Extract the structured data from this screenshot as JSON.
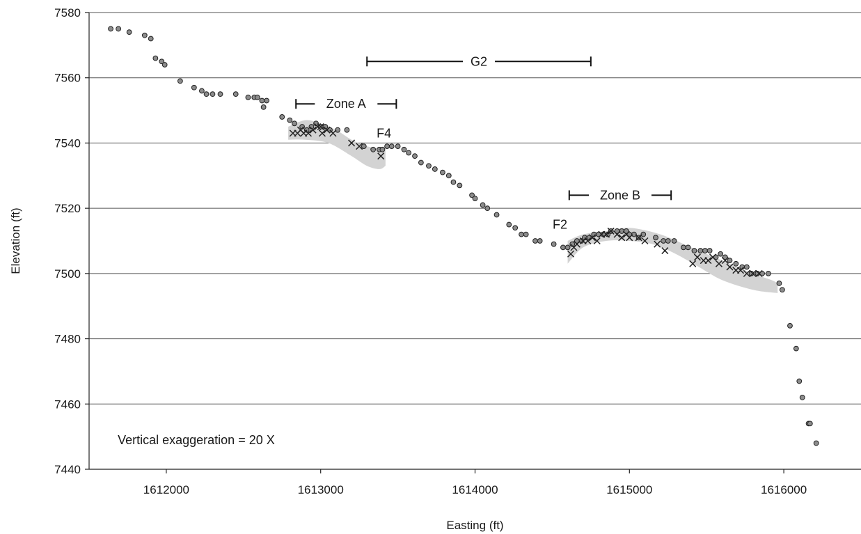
{
  "chart_data": {
    "type": "scatter",
    "title": "",
    "xlabel": "Easting (ft)",
    "ylabel": "Elevation (ft)",
    "xlim": [
      1611500,
      1616500
    ],
    "ylim": [
      7440,
      7580
    ],
    "x_ticks": [
      1612000,
      1613000,
      1614000,
      1615000,
      1616000
    ],
    "x_tick_labels": [
      "1612000",
      "1613000",
      "1614000",
      "1615000",
      "1616000"
    ],
    "y_ticks": [
      7440,
      7460,
      7480,
      7500,
      7520,
      7540,
      7560,
      7580
    ],
    "y_tick_labels": [
      "7440",
      "7460",
      "7480",
      "7500",
      "7520",
      "7540",
      "7560",
      "7580"
    ],
    "grid": "horizontal",
    "colors": {
      "points": "#8c8c8c",
      "point_edge": "#222222",
      "band": "#d3d3d3",
      "cross": "#222222"
    },
    "series": [
      {
        "marker": "circle",
        "points": [
          [
            1611640,
            7575
          ],
          [
            1611690,
            7575
          ],
          [
            1611760,
            7574
          ],
          [
            1611860,
            7573
          ],
          [
            1611900,
            7572
          ],
          [
            1611930,
            7566
          ],
          [
            1611970,
            7565
          ],
          [
            1611990,
            7564
          ],
          [
            1612090,
            7559
          ],
          [
            1612180,
            7557
          ],
          [
            1612230,
            7556
          ],
          [
            1612260,
            7555
          ],
          [
            1612300,
            7555
          ],
          [
            1612350,
            7555
          ],
          [
            1612450,
            7555
          ],
          [
            1612530,
            7554
          ],
          [
            1612570,
            7554
          ],
          [
            1612590,
            7554
          ],
          [
            1612620,
            7553
          ],
          [
            1612650,
            7553
          ],
          [
            1612630,
            7551
          ],
          [
            1612750,
            7548
          ],
          [
            1612800,
            7547
          ],
          [
            1612830,
            7546
          ],
          [
            1612880,
            7545
          ],
          [
            1612910,
            7544
          ],
          [
            1612940,
            7545
          ],
          [
            1612970,
            7546
          ],
          [
            1613000,
            7545
          ],
          [
            1613030,
            7545
          ],
          [
            1613060,
            7544
          ],
          [
            1613110,
            7544
          ],
          [
            1613170,
            7544
          ],
          [
            1613280,
            7539
          ],
          [
            1613340,
            7538
          ],
          [
            1613380,
            7538
          ],
          [
            1613400,
            7538
          ],
          [
            1613430,
            7539
          ],
          [
            1613460,
            7539
          ],
          [
            1613500,
            7539
          ],
          [
            1613540,
            7538
          ],
          [
            1613570,
            7537
          ],
          [
            1613610,
            7536
          ],
          [
            1613650,
            7534
          ],
          [
            1613700,
            7533
          ],
          [
            1613740,
            7532
          ],
          [
            1613790,
            7531
          ],
          [
            1613830,
            7530
          ],
          [
            1613860,
            7528
          ],
          [
            1613900,
            7527
          ],
          [
            1613980,
            7524
          ],
          [
            1614000,
            7523
          ],
          [
            1614050,
            7521
          ],
          [
            1614080,
            7520
          ],
          [
            1614140,
            7518
          ],
          [
            1614220,
            7515
          ],
          [
            1614260,
            7514
          ],
          [
            1614300,
            7512
          ],
          [
            1614330,
            7512
          ],
          [
            1614390,
            7510
          ],
          [
            1614420,
            7510
          ],
          [
            1614510,
            7509
          ],
          [
            1614570,
            7508
          ],
          [
            1614600,
            7508
          ],
          [
            1614630,
            7509
          ],
          [
            1614660,
            7510
          ],
          [
            1614690,
            7510
          ],
          [
            1614710,
            7511
          ],
          [
            1614740,
            7511
          ],
          [
            1614770,
            7512
          ],
          [
            1614800,
            7512
          ],
          [
            1614830,
            7512
          ],
          [
            1614860,
            7512
          ],
          [
            1614880,
            7513
          ],
          [
            1614920,
            7513
          ],
          [
            1614950,
            7513
          ],
          [
            1614980,
            7513
          ],
          [
            1615000,
            7512
          ],
          [
            1615030,
            7512
          ],
          [
            1615060,
            7511
          ],
          [
            1615090,
            7512
          ],
          [
            1615170,
            7511
          ],
          [
            1615220,
            7510
          ],
          [
            1615250,
            7510
          ],
          [
            1615290,
            7510
          ],
          [
            1615350,
            7508
          ],
          [
            1615380,
            7508
          ],
          [
            1615420,
            7507
          ],
          [
            1615460,
            7507
          ],
          [
            1615490,
            7507
          ],
          [
            1615520,
            7507
          ],
          [
            1615560,
            7505
          ],
          [
            1615590,
            7506
          ],
          [
            1615620,
            7505
          ],
          [
            1615650,
            7504
          ],
          [
            1615690,
            7503
          ],
          [
            1615730,
            7502
          ],
          [
            1615760,
            7502
          ],
          [
            1615790,
            7500
          ],
          [
            1615830,
            7500
          ],
          [
            1615860,
            7500
          ],
          [
            1615900,
            7500
          ],
          [
            1615970,
            7497
          ],
          [
            1615990,
            7495
          ],
          [
            1616040,
            7484
          ],
          [
            1616080,
            7477
          ],
          [
            1616100,
            7467
          ],
          [
            1616120,
            7462
          ],
          [
            1616160,
            7454
          ],
          [
            1616170,
            7454
          ],
          [
            1616210,
            7448
          ]
        ]
      },
      {
        "marker": "x",
        "points": [
          [
            1612820,
            7543
          ],
          [
            1612850,
            7543
          ],
          [
            1612870,
            7544
          ],
          [
            1612890,
            7543
          ],
          [
            1612920,
            7543
          ],
          [
            1612950,
            7544
          ],
          [
            1612980,
            7545
          ],
          [
            1613000,
            7545
          ],
          [
            1613010,
            7543
          ],
          [
            1613040,
            7544
          ],
          [
            1613080,
            7543
          ],
          [
            1613200,
            7540
          ],
          [
            1613250,
            7539
          ],
          [
            1613390,
            7536
          ],
          [
            1614620,
            7506
          ],
          [
            1614640,
            7508
          ],
          [
            1614660,
            7509
          ],
          [
            1614700,
            7510
          ],
          [
            1614730,
            7510
          ],
          [
            1614760,
            7511
          ],
          [
            1614790,
            7510
          ],
          [
            1614820,
            7512
          ],
          [
            1614850,
            7512
          ],
          [
            1614880,
            7513
          ],
          [
            1614920,
            7512
          ],
          [
            1614950,
            7511
          ],
          [
            1614980,
            7512
          ],
          [
            1615000,
            7511
          ],
          [
            1615060,
            7511
          ],
          [
            1615100,
            7510
          ],
          [
            1615180,
            7509
          ],
          [
            1615230,
            7507
          ],
          [
            1615410,
            7503
          ],
          [
            1615440,
            7505
          ],
          [
            1615480,
            7504
          ],
          [
            1615510,
            7504
          ],
          [
            1615540,
            7505
          ],
          [
            1615580,
            7503
          ],
          [
            1615620,
            7504
          ],
          [
            1615650,
            7502
          ],
          [
            1615690,
            7501
          ],
          [
            1615720,
            7501
          ],
          [
            1615760,
            7500
          ],
          [
            1615800,
            7500
          ],
          [
            1615840,
            7500
          ]
        ]
      }
    ],
    "shaded_bands": [
      {
        "upper": [
          [
            1612790,
            7545
          ],
          [
            1612900,
            7547
          ],
          [
            1613000,
            7546
          ],
          [
            1613100,
            7544
          ],
          [
            1613200,
            7541
          ],
          [
            1613300,
            7539
          ],
          [
            1613420,
            7538
          ]
        ],
        "lower": [
          [
            1613420,
            7533
          ],
          [
            1613380,
            7532
          ],
          [
            1613300,
            7533
          ],
          [
            1613200,
            7536
          ],
          [
            1613050,
            7540
          ],
          [
            1612900,
            7541
          ],
          [
            1612790,
            7541
          ]
        ]
      },
      {
        "upper": [
          [
            1614600,
            7510
          ],
          [
            1614700,
            7512
          ],
          [
            1614850,
            7513
          ],
          [
            1615000,
            7514
          ],
          [
            1615200,
            7512
          ],
          [
            1615400,
            7508
          ],
          [
            1615600,
            7504
          ],
          [
            1615800,
            7500
          ],
          [
            1615920,
            7498
          ],
          [
            1615960,
            7497
          ]
        ],
        "lower": [
          [
            1615960,
            7494
          ],
          [
            1615800,
            7495
          ],
          [
            1615600,
            7498
          ],
          [
            1615450,
            7502
          ],
          [
            1615300,
            7506
          ],
          [
            1615150,
            7509
          ],
          [
            1615000,
            7510
          ],
          [
            1614850,
            7510
          ],
          [
            1614700,
            7508
          ],
          [
            1614600,
            7503
          ]
        ]
      }
    ],
    "ranges": [
      {
        "label": "G2",
        "x_start": 1613300,
        "x_end": 1614750,
        "y": 7565
      },
      {
        "label": "Zone A",
        "x_start": 1612840,
        "x_end": 1613490,
        "y": 7552
      },
      {
        "label": "Zone B",
        "x_start": 1614610,
        "x_end": 1615270,
        "y": 7524
      }
    ],
    "annotations": [
      {
        "text": "F4",
        "x": 1613410,
        "y": 7543
      },
      {
        "text": "F2",
        "x": 1614550,
        "y": 7515
      },
      {
        "text": "Vertical exaggeration = 20 X",
        "x": 1611550,
        "y": 7449
      }
    ]
  }
}
